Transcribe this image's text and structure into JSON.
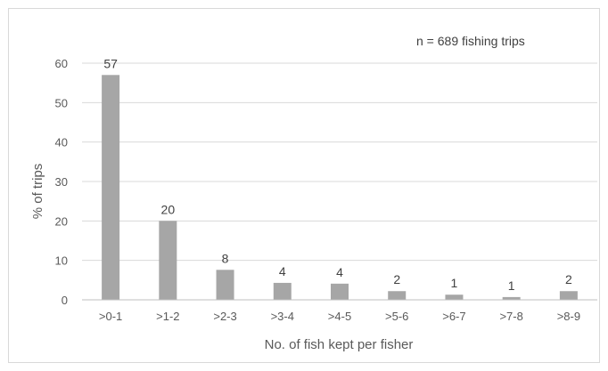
{
  "chart_data": {
    "type": "bar",
    "categories": [
      ">0-1",
      ">1-2",
      ">2-3",
      ">3-4",
      ">4-5",
      ">5-6",
      ">6-7",
      ">7-8",
      ">8-9"
    ],
    "values": [
      57,
      20,
      7.6,
      4.3,
      4.1,
      2.2,
      1.3,
      0.7,
      2.2
    ],
    "data_labels": [
      "57",
      "20",
      "8",
      "4",
      "4",
      "2",
      "1",
      "1",
      "2"
    ],
    "xlabel": "No. of fish kept per fisher",
    "ylabel": "% of trips",
    "ylim": [
      0,
      60
    ],
    "yticks": [
      0,
      10,
      20,
      30,
      40,
      50,
      60
    ],
    "grid": true,
    "annotation": "n = 689 fishing trips",
    "colors": {
      "bar": "#a6a6a6",
      "grid": "#d9d9d9",
      "axis": "#bfbfbf"
    }
  }
}
